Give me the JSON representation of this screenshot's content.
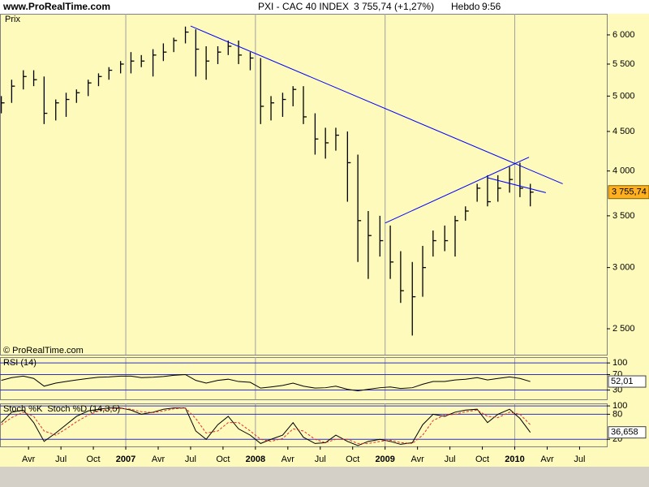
{
  "header": {
    "site": "www.ProRealTime.com",
    "instrument": "PXI - CAC 40 INDEX",
    "quote": "3 755,74 (+1,27%)",
    "period": "Hebdo",
    "time": "9:56"
  },
  "chart_data": [
    {
      "type": "ohlc",
      "label": "Prix",
      "watermark": "© ProRealTime.com",
      "log": true,
      "color": "#000000",
      "xlim": [
        2006.03,
        2010.71
      ],
      "ylim": [
        2314,
        6389
      ],
      "yticks": [
        {
          "value": 2500,
          "label": "2 500"
        },
        {
          "value": 3000,
          "label": "3 000"
        },
        {
          "value": 3500,
          "label": "3 500"
        },
        {
          "value": 4000,
          "label": "4 000"
        },
        {
          "value": 4500,
          "label": "4 500"
        },
        {
          "value": 5000,
          "label": "5 000"
        },
        {
          "value": 5500,
          "label": "5 500"
        },
        {
          "value": 6000,
          "label": "6 000"
        }
      ],
      "x": [
        2006.04,
        2006.12,
        2006.21,
        2006.29,
        2006.37,
        2006.46,
        2006.54,
        2006.62,
        2006.71,
        2006.79,
        2006.87,
        2006.96,
        2007.04,
        2007.12,
        2007.21,
        2007.29,
        2007.37,
        2007.46,
        2007.54,
        2007.62,
        2007.71,
        2007.79,
        2007.87,
        2007.96,
        2008.04,
        2008.12,
        2008.21,
        2008.29,
        2008.37,
        2008.46,
        2008.54,
        2008.62,
        2008.71,
        2008.79,
        2008.87,
        2008.96,
        2009.04,
        2009.12,
        2009.21,
        2009.29,
        2009.37,
        2009.46,
        2009.54,
        2009.62,
        2009.71,
        2009.79,
        2009.87,
        2009.96,
        2010.04,
        2010.12
      ],
      "high": [
        5000,
        5250,
        5400,
        5400,
        5300,
        4950,
        5050,
        5100,
        5250,
        5350,
        5450,
        5550,
        5700,
        5650,
        5750,
        5850,
        5950,
        6150,
        6100,
        5800,
        5800,
        5900,
        5900,
        5700,
        5600,
        5000,
        5050,
        5150,
        5150,
        4750,
        4550,
        4550,
        4500,
        4200,
        3550,
        3500,
        3400,
        3150,
        3050,
        3200,
        3350,
        3400,
        3500,
        3600,
        3850,
        3950,
        3950,
        4050,
        4100,
        3850
      ],
      "low": [
        4750,
        4900,
        5100,
        5150,
        4600,
        4650,
        4700,
        4900,
        5000,
        5150,
        5250,
        5350,
        5350,
        5450,
        5300,
        5550,
        5700,
        5850,
        5300,
        5250,
        5500,
        5650,
        5500,
        5400,
        4600,
        4650,
        4700,
        4850,
        4600,
        4200,
        4150,
        4250,
        3650,
        3050,
        2900,
        3100,
        2900,
        2700,
        2450,
        2750,
        3100,
        3150,
        3100,
        3450,
        3650,
        3600,
        3650,
        3750,
        3700,
        3600
      ],
      "close": [
        4900,
        5150,
        5300,
        5250,
        4750,
        4900,
        4950,
        5050,
        5200,
        5300,
        5400,
        5500,
        5550,
        5550,
        5650,
        5700,
        5900,
        6050,
        5750,
        5550,
        5700,
        5800,
        5650,
        5600,
        4850,
        4900,
        4950,
        5100,
        4700,
        4400,
        4350,
        4450,
        4100,
        3450,
        3300,
        3250,
        3050,
        2800,
        2750,
        3000,
        3250,
        3250,
        3450,
        3550,
        3800,
        3650,
        3800,
        3900,
        3800,
        3755.74
      ],
      "last_label": "3 755,74",
      "trendlines": [
        {
          "color": "#0000ff",
          "x": [
            2007.5,
            2010.37
          ],
          "y": [
            6160,
            3850
          ]
        },
        {
          "color": "#0000ff",
          "x": [
            2009.0,
            2010.11
          ],
          "y": [
            3425,
            4168
          ]
        },
        {
          "color": "#0000ff",
          "x": [
            2009.79,
            2010.24
          ],
          "y": [
            3920,
            3750
          ]
        }
      ]
    },
    {
      "type": "line",
      "title": "RSI (14)",
      "grid_color": "#3030c0",
      "xlim": [
        2006.03,
        2010.71
      ],
      "ylim": [
        6,
        115
      ],
      "yticks": [
        30,
        70,
        100
      ],
      "x": [
        2006.04,
        2006.12,
        2006.21,
        2006.29,
        2006.37,
        2006.46,
        2006.54,
        2006.62,
        2006.71,
        2006.79,
        2006.87,
        2006.96,
        2007.04,
        2007.12,
        2007.21,
        2007.29,
        2007.37,
        2007.46,
        2007.54,
        2007.62,
        2007.71,
        2007.79,
        2007.87,
        2007.96,
        2008.04,
        2008.12,
        2008.21,
        2008.29,
        2008.37,
        2008.46,
        2008.54,
        2008.62,
        2008.71,
        2008.79,
        2008.87,
        2008.96,
        2009.04,
        2009.12,
        2009.21,
        2009.29,
        2009.37,
        2009.46,
        2009.54,
        2009.62,
        2009.71,
        2009.79,
        2009.87,
        2009.96,
        2010.04,
        2010.12
      ],
      "series": [
        {
          "color": "#000000",
          "values": [
            55,
            62,
            66,
            60,
            40,
            48,
            52,
            56,
            60,
            63,
            64,
            66,
            66,
            62,
            63,
            65,
            68,
            70,
            55,
            48,
            55,
            58,
            52,
            50,
            35,
            38,
            42,
            48,
            40,
            35,
            36,
            40,
            32,
            28,
            32,
            36,
            38,
            34,
            36,
            45,
            52,
            52,
            56,
            58,
            62,
            56,
            60,
            64,
            60,
            52.01
          ]
        }
      ],
      "last_label": "52,01"
    },
    {
      "type": "line",
      "grid_color": "#3030c0",
      "xlim": [
        2006.03,
        2010.71
      ],
      "ylim": [
        3,
        106
      ],
      "yticks": [
        20,
        80,
        100
      ],
      "xticks": [
        {
          "value": 2006.25,
          "label": "Avr"
        },
        {
          "value": 2006.5,
          "label": "Jul"
        },
        {
          "value": 2006.75,
          "label": "Oct"
        },
        2007,
        {
          "value": 2007.25,
          "label": "Avr"
        },
        {
          "value": 2007.5,
          "label": "Jul"
        },
        {
          "value": 2007.75,
          "label": "Oct"
        },
        2008,
        {
          "value": 2008.25,
          "label": "Avr"
        },
        {
          "value": 2008.5,
          "label": "Jul"
        },
        {
          "value": 2008.75,
          "label": "Oct"
        },
        2009,
        {
          "value": 2009.25,
          "label": "Avr"
        },
        {
          "value": 2009.5,
          "label": "Jul"
        },
        {
          "value": 2009.75,
          "label": "Oct"
        },
        2010,
        {
          "value": 2010.25,
          "label": "Avr"
        },
        {
          "value": 2010.5,
          "label": "Jul"
        }
      ],
      "x": [
        2006.04,
        2006.12,
        2006.21,
        2006.29,
        2006.37,
        2006.46,
        2006.54,
        2006.62,
        2006.71,
        2006.79,
        2006.87,
        2006.96,
        2007.04,
        2007.12,
        2007.21,
        2007.29,
        2007.37,
        2007.46,
        2007.54,
        2007.62,
        2007.71,
        2007.79,
        2007.87,
        2007.96,
        2008.04,
        2008.12,
        2008.21,
        2008.29,
        2008.37,
        2008.46,
        2008.54,
        2008.62,
        2008.71,
        2008.79,
        2008.87,
        2008.96,
        2009.04,
        2009.12,
        2009.21,
        2009.29,
        2009.37,
        2009.46,
        2009.54,
        2009.62,
        2009.71,
        2009.79,
        2009.87,
        2009.96,
        2010.04,
        2010.12
      ],
      "series": [
        {
          "name": "Stoch %K",
          "color": "#000000",
          "values": [
            60,
            85,
            90,
            60,
            15,
            35,
            55,
            75,
            88,
            92,
            95,
            95,
            90,
            80,
            85,
            92,
            95,
            95,
            40,
            20,
            55,
            75,
            45,
            30,
            10,
            20,
            30,
            60,
            25,
            10,
            12,
            30,
            15,
            5,
            15,
            20,
            15,
            8,
            12,
            55,
            80,
            75,
            85,
            90,
            92,
            60,
            80,
            92,
            70,
            36.658
          ]
        },
        {
          "name": "Stoch %D (14,3,5)",
          "color": "#e03030",
          "dashed": true,
          "values": [
            55,
            72,
            85,
            75,
            40,
            30,
            45,
            62,
            78,
            88,
            92,
            94,
            92,
            86,
            84,
            88,
            93,
            95,
            70,
            35,
            40,
            60,
            60,
            40,
            20,
            15,
            22,
            45,
            40,
            20,
            12,
            20,
            20,
            10,
            10,
            15,
            18,
            12,
            10,
            30,
            65,
            78,
            80,
            86,
            90,
            75,
            72,
            85,
            80,
            55
          ]
        }
      ],
      "last_label": "36,658"
    }
  ]
}
